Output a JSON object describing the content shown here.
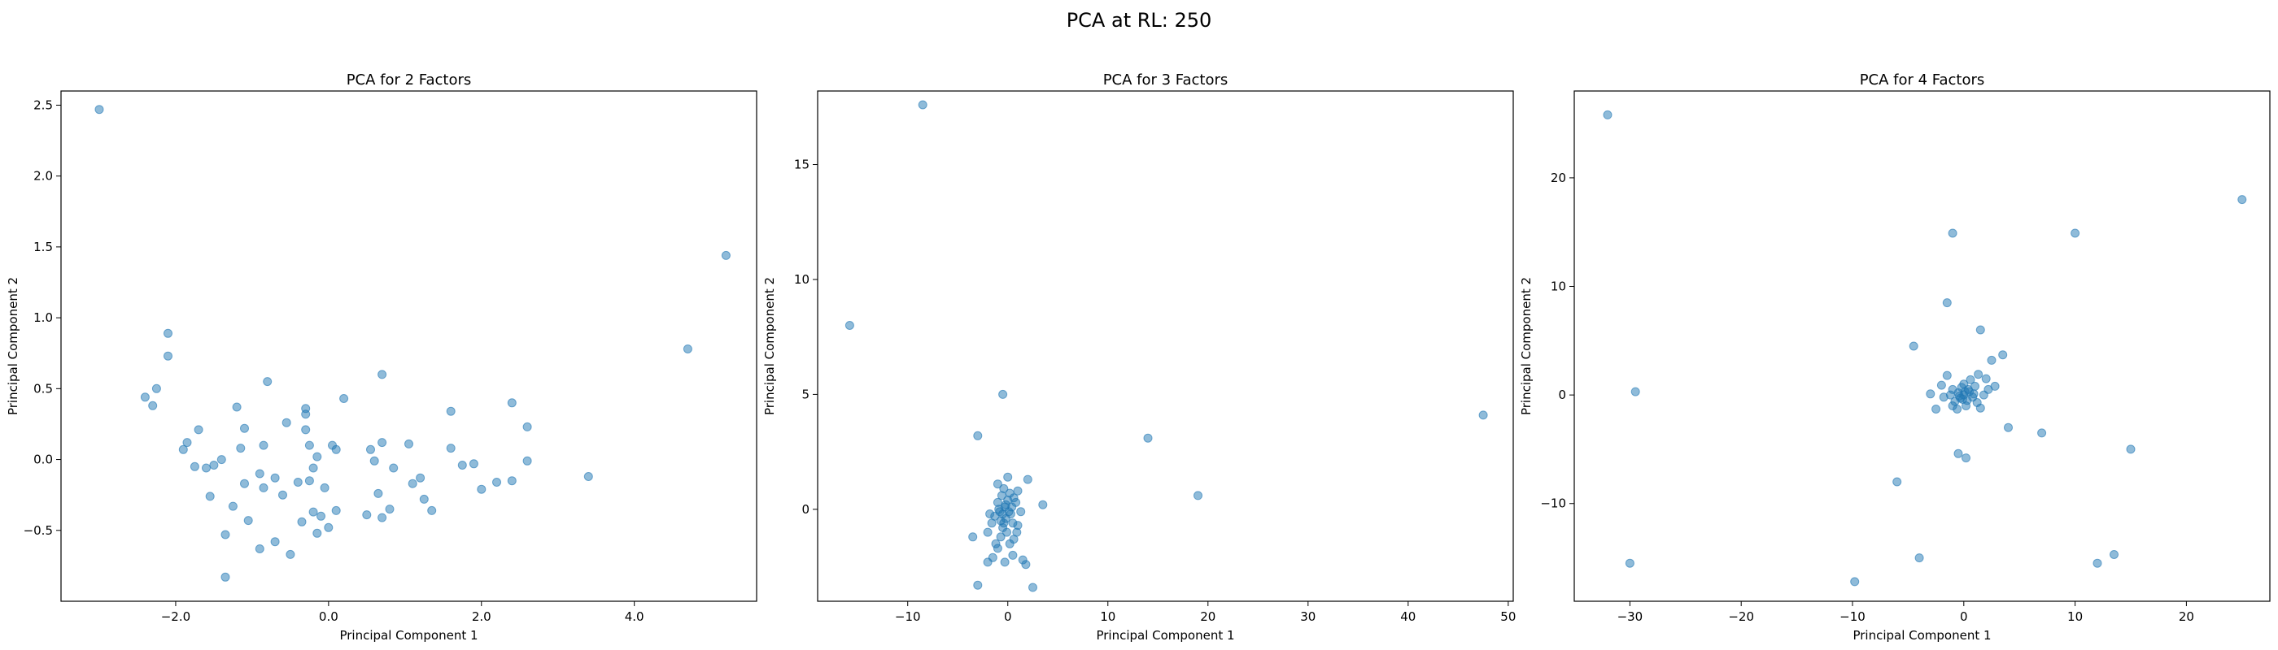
{
  "figure": {
    "suptitle": "PCA at RL: 250"
  },
  "chart_data": [
    {
      "type": "scatter",
      "title": "PCA for 2 Factors",
      "xlabel": "Principal Component 1",
      "ylabel": "Principal Component 2",
      "xlim": [
        -3.5,
        5.6
      ],
      "ylim": [
        -1.0,
        2.6
      ],
      "xticks": [
        -2,
        0,
        2,
        4
      ],
      "yticks": [
        -0.5,
        0.0,
        0.5,
        1.0,
        1.5,
        2.0,
        2.5
      ],
      "tick_decimals": 1,
      "marker_color": "#1f77b4",
      "points": [
        [
          -3.0,
          2.47
        ],
        [
          5.2,
          1.44
        ],
        [
          4.7,
          0.78
        ],
        [
          -2.1,
          0.89
        ],
        [
          -2.1,
          0.73
        ],
        [
          -2.4,
          0.44
        ],
        [
          -2.3,
          0.38
        ],
        [
          -2.25,
          0.5
        ],
        [
          -0.8,
          0.55
        ],
        [
          0.7,
          0.6
        ],
        [
          1.6,
          0.34
        ],
        [
          2.4,
          0.4
        ],
        [
          2.6,
          0.23
        ],
        [
          3.4,
          -0.12
        ],
        [
          2.6,
          -0.01
        ],
        [
          2.4,
          -0.15
        ],
        [
          2.2,
          -0.16
        ],
        [
          2.0,
          -0.21
        ],
        [
          1.9,
          -0.03
        ],
        [
          1.75,
          -0.04
        ],
        [
          1.6,
          0.08
        ],
        [
          1.35,
          -0.36
        ],
        [
          1.25,
          -0.28
        ],
        [
          1.2,
          -0.13
        ],
        [
          1.1,
          -0.17
        ],
        [
          1.05,
          0.11
        ],
        [
          0.85,
          -0.06
        ],
        [
          0.8,
          -0.35
        ],
        [
          0.7,
          -0.41
        ],
        [
          0.7,
          0.12
        ],
        [
          0.65,
          -0.24
        ],
        [
          0.6,
          -0.01
        ],
        [
          0.55,
          0.07
        ],
        [
          0.5,
          -0.39
        ],
        [
          0.2,
          0.43
        ],
        [
          0.1,
          0.07
        ],
        [
          0.05,
          0.1
        ],
        [
          0.1,
          -0.36
        ],
        [
          0.0,
          -0.48
        ],
        [
          -0.05,
          -0.2
        ],
        [
          -0.1,
          -0.4
        ],
        [
          -0.15,
          -0.52
        ],
        [
          -0.15,
          0.02
        ],
        [
          -0.2,
          -0.06
        ],
        [
          -0.2,
          -0.37
        ],
        [
          -0.25,
          -0.15
        ],
        [
          -0.25,
          0.1
        ],
        [
          -0.3,
          0.21
        ],
        [
          -0.3,
          0.32
        ],
        [
          -0.3,
          0.36
        ],
        [
          -0.35,
          -0.44
        ],
        [
          -0.4,
          -0.16
        ],
        [
          -0.5,
          -0.67
        ],
        [
          -0.55,
          0.26
        ],
        [
          -0.6,
          -0.25
        ],
        [
          -0.7,
          -0.58
        ],
        [
          -0.7,
          -0.13
        ],
        [
          -0.85,
          0.1
        ],
        [
          -0.85,
          -0.2
        ],
        [
          -0.9,
          -0.63
        ],
        [
          -1.05,
          -0.43
        ],
        [
          -1.1,
          -0.17
        ],
        [
          -1.1,
          0.22
        ],
        [
          -1.15,
          0.08
        ],
        [
          -1.2,
          0.37
        ],
        [
          -1.25,
          -0.33
        ],
        [
          -1.35,
          -0.53
        ],
        [
          -1.35,
          -0.83
        ],
        [
          -1.4,
          0.0
        ],
        [
          -1.5,
          -0.04
        ],
        [
          -1.55,
          -0.26
        ],
        [
          -1.6,
          -0.06
        ],
        [
          -1.7,
          0.21
        ],
        [
          -1.75,
          -0.05
        ],
        [
          -1.85,
          0.12
        ],
        [
          -1.9,
          0.07
        ],
        [
          -0.9,
          -0.1
        ]
      ]
    },
    {
      "type": "scatter",
      "title": "PCA for 3 Factors",
      "xlabel": "Principal Component 1",
      "ylabel": "Principal Component 2",
      "xlim": [
        -19.0,
        50.5
      ],
      "ylim": [
        -4.0,
        18.2
      ],
      "xticks": [
        -10,
        0,
        10,
        20,
        30,
        40,
        50
      ],
      "yticks": [
        0,
        5,
        10,
        15
      ],
      "tick_decimals": 0,
      "marker_color": "#1f77b4",
      "points": [
        [
          -8.5,
          17.6
        ],
        [
          -15.8,
          8.0
        ],
        [
          -0.5,
          5.0
        ],
        [
          -3.0,
          3.2
        ],
        [
          14.0,
          3.1
        ],
        [
          47.5,
          4.1
        ],
        [
          19.0,
          0.6
        ],
        [
          3.5,
          0.2
        ],
        [
          2.0,
          1.3
        ],
        [
          0.0,
          1.4
        ],
        [
          -1.0,
          1.1
        ],
        [
          1.0,
          0.8
        ],
        [
          -3.5,
          -1.2
        ],
        [
          -2.0,
          -2.3
        ],
        [
          -3.0,
          -3.3
        ],
        [
          2.5,
          -3.4
        ],
        [
          1.8,
          -2.4
        ],
        [
          1.5,
          -2.2
        ],
        [
          0.5,
          -2.0
        ],
        [
          -0.3,
          -2.3
        ],
        [
          -1.5,
          -2.1
        ],
        [
          -1.0,
          -1.7
        ],
        [
          0.2,
          -1.5
        ],
        [
          -2.0,
          -1.0
        ],
        [
          1.0,
          -0.7
        ],
        [
          -0.5,
          -0.8
        ],
        [
          0.5,
          -0.6
        ],
        [
          -1.3,
          -0.3
        ],
        [
          -0.8,
          -0.1
        ],
        [
          0.3,
          -0.2
        ],
        [
          -0.3,
          0.1
        ],
        [
          -1.0,
          0.3
        ],
        [
          0.0,
          0.4
        ],
        [
          -0.6,
          0.6
        ],
        [
          0.2,
          0.7
        ],
        [
          -0.2,
          -0.4
        ],
        [
          -0.4,
          -0.6
        ],
        [
          -0.1,
          -1.0
        ],
        [
          -0.7,
          -1.2
        ],
        [
          0.6,
          -1.3
        ],
        [
          -1.6,
          -0.6
        ],
        [
          1.3,
          -0.1
        ],
        [
          -0.9,
          0.0
        ],
        [
          0.4,
          0.1
        ],
        [
          -0.2,
          0.2
        ],
        [
          0.1,
          -0.1
        ],
        [
          -0.5,
          -0.2
        ],
        [
          0.8,
          0.3
        ],
        [
          -1.2,
          -1.5
        ],
        [
          0.9,
          -1.0
        ],
        [
          -0.4,
          0.9
        ],
        [
          0.6,
          0.5
        ],
        [
          -1.8,
          -0.2
        ],
        [
          -0.7,
          -0.5
        ]
      ]
    },
    {
      "type": "scatter",
      "title": "PCA for 4 Factors",
      "xlabel": "Principal Component 1",
      "ylabel": "Principal Component 2",
      "xlim": [
        -35.0,
        27.5
      ],
      "ylim": [
        -19.0,
        28.0
      ],
      "xticks": [
        -30,
        -20,
        -10,
        0,
        10,
        20
      ],
      "yticks": [
        -10,
        0,
        10,
        20
      ],
      "tick_decimals": 0,
      "marker_color": "#1f77b4",
      "points": [
        [
          -32.0,
          25.8
        ],
        [
          25.0,
          18.0
        ],
        [
          10.0,
          14.9
        ],
        [
          -1.0,
          14.9
        ],
        [
          -1.5,
          8.5
        ],
        [
          1.5,
          6.0
        ],
        [
          -4.5,
          4.5
        ],
        [
          3.5,
          3.7
        ],
        [
          2.5,
          3.2
        ],
        [
          -29.5,
          0.3
        ],
        [
          4.0,
          -3.0
        ],
        [
          7.0,
          -3.5
        ],
        [
          15.0,
          -5.0
        ],
        [
          -6.0,
          -8.0
        ],
        [
          -4.0,
          -15.0
        ],
        [
          -30.0,
          -15.5
        ],
        [
          12.0,
          -15.5
        ],
        [
          13.5,
          -14.7
        ],
        [
          -9.8,
          -17.2
        ],
        [
          -0.5,
          -5.4
        ],
        [
          0.2,
          -5.8
        ],
        [
          -1.0,
          -1.0
        ],
        [
          -1.5,
          1.8
        ],
        [
          2.0,
          1.5
        ],
        [
          -2.5,
          -1.3
        ],
        [
          1.5,
          -1.2
        ],
        [
          -3.0,
          0.1
        ],
        [
          2.2,
          0.5
        ],
        [
          0.0,
          0.0
        ],
        [
          0.5,
          0.3
        ],
        [
          -0.5,
          0.2
        ],
        [
          0.3,
          -0.5
        ],
        [
          -0.3,
          -0.3
        ],
        [
          1.0,
          0.8
        ],
        [
          -1.0,
          0.5
        ],
        [
          0.8,
          -0.2
        ],
        [
          -0.8,
          -0.6
        ],
        [
          1.2,
          -0.7
        ],
        [
          0.0,
          1.0
        ],
        [
          0.2,
          -1.0
        ],
        [
          -0.2,
          0.7
        ],
        [
          1.8,
          0.0
        ],
        [
          -1.8,
          -0.2
        ],
        [
          0.6,
          1.4
        ],
        [
          -0.6,
          -1.3
        ],
        [
          2.8,
          0.8
        ],
        [
          -2.0,
          0.9
        ],
        [
          1.3,
          1.9
        ],
        [
          0.4,
          0.5
        ],
        [
          -0.4,
          -0.1
        ],
        [
          0.9,
          0.1
        ],
        [
          -1.2,
          0.0
        ],
        [
          0.1,
          0.3
        ],
        [
          -0.1,
          -0.4
        ]
      ]
    }
  ]
}
